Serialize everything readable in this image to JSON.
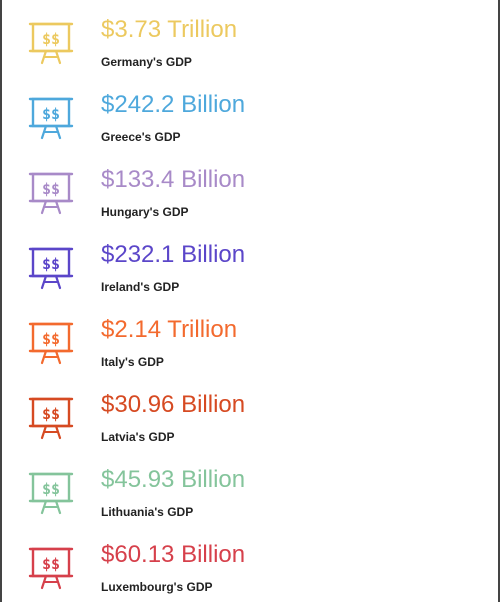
{
  "items": [
    {
      "value": "$3.73 Trillion",
      "label": "Germany's GDP",
      "color": "#ecc95f",
      "icon": "presentation-board-icon"
    },
    {
      "value": "$242.2 Billion",
      "label": "Greece's GDP",
      "color": "#4ea8dc",
      "icon": "presentation-board-icon"
    },
    {
      "value": "$133.4 Billion",
      "label": "Hungary's GDP",
      "color": "#a88ac8",
      "icon": "presentation-board-icon"
    },
    {
      "value": "$232.1 Billion",
      "label": "Ireland's GDP",
      "color": "#5b46c9",
      "icon": "presentation-board-icon"
    },
    {
      "value": "$2.14 Trillion",
      "label": "Italy's GDP",
      "color": "#f36a2e",
      "icon": "presentation-board-icon"
    },
    {
      "value": "$30.96 Billion",
      "label": "Latvia's GDP",
      "color": "#d64a22",
      "icon": "presentation-board-icon"
    },
    {
      "value": "$45.93 Billion",
      "label": "Lithuania's GDP",
      "color": "#84c49b",
      "icon": "presentation-board-icon"
    },
    {
      "value": "$60.13 Billion",
      "label": "Luxembourg's GDP",
      "color": "#d6404b",
      "icon": "presentation-board-icon"
    }
  ],
  "icon_glyph": "$$"
}
